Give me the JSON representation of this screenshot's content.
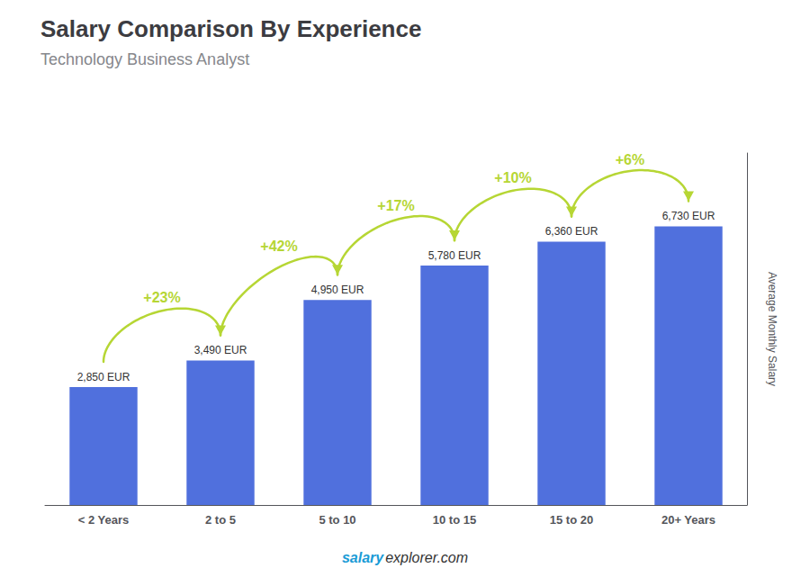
{
  "chart_data": {
    "type": "bar",
    "title": "Salary Comparison By Experience",
    "subtitle": "Technology Business Analyst",
    "ylabel": "Average Monthly Salary",
    "categories": [
      "< 2 Years",
      "2 to 5",
      "5 to 10",
      "10 to 15",
      "15 to 20",
      "20+ Years"
    ],
    "values": [
      2850,
      3490,
      4950,
      5780,
      6360,
      6730
    ],
    "value_labels": [
      "2,850 EUR",
      "3,490 EUR",
      "4,950 EUR",
      "5,780 EUR",
      "6,360 EUR",
      "6,730 EUR"
    ],
    "data_labels": true,
    "pct_changes": [
      "+23%",
      "+42%",
      "+17%",
      "+10%",
      "+6%"
    ],
    "ylim": [
      0,
      8500
    ],
    "grid": false,
    "tick_labels": "x",
    "footer_bold": "salary",
    "footer_regular": "explorer.com"
  }
}
